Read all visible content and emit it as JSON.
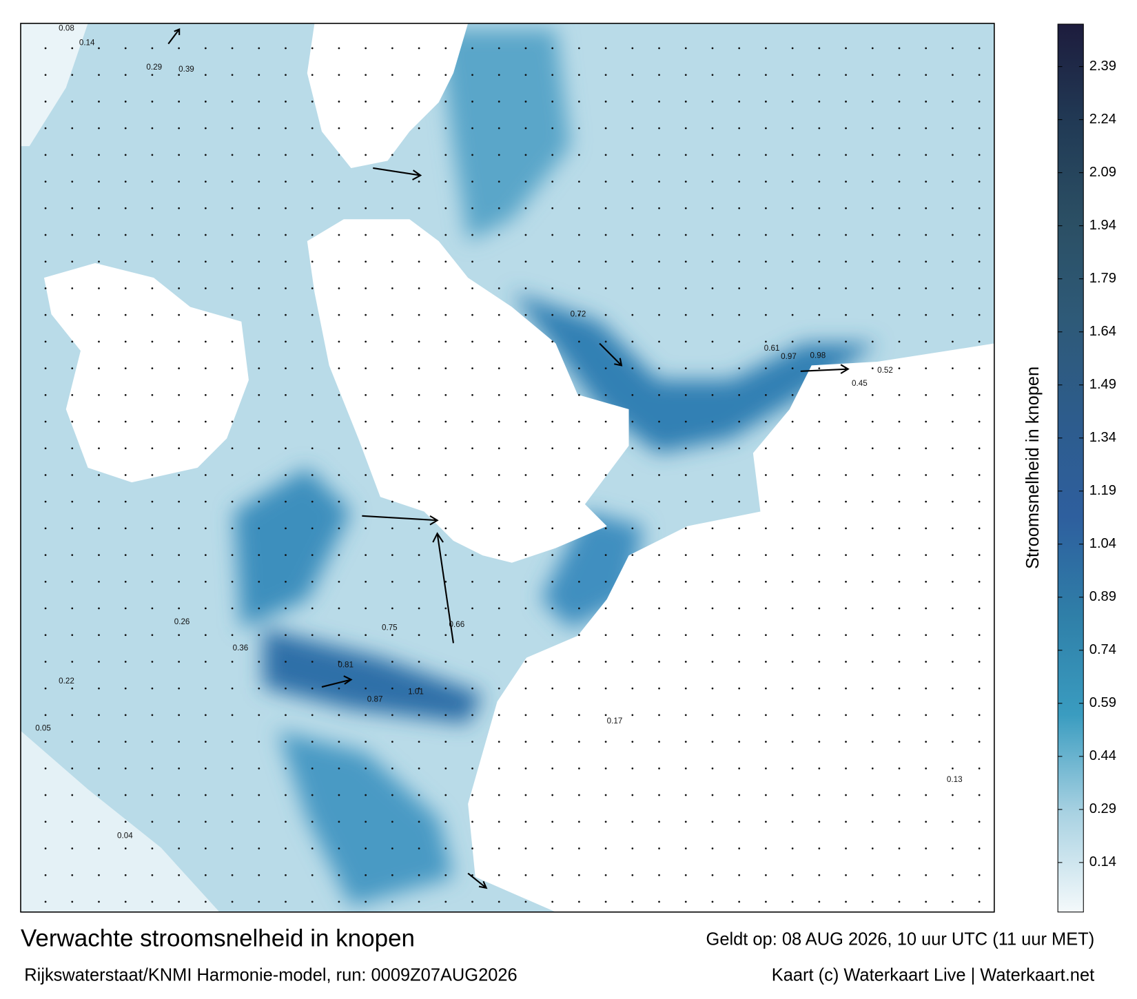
{
  "title": "Verwachte stroomsnelheid in knopen",
  "subtitle": "Rijkswaterstaat/KNMI Harmonie-model, run: 0009Z07AUG2026",
  "valid_time": "Geldt op: 08 AUG 2026, 10 uur UTC (11 uur MET)",
  "credit": "Kaart (c) Waterkaart Live | Waterkaart.net",
  "colorbar": {
    "label": "Stroomsnelheid in knopen",
    "lim": [
      0,
      2.51
    ],
    "ticks": [
      0.14,
      0.29,
      0.44,
      0.59,
      0.74,
      0.89,
      1.04,
      1.19,
      1.34,
      1.49,
      1.64,
      1.79,
      1.94,
      2.09,
      2.24,
      2.39
    ],
    "colors": [
      "#f4f9fb",
      "#a9d2e2",
      "#3a9cc0",
      "#2f7fa8",
      "#2e5f9e",
      "#2d5c8c",
      "#2e5a78",
      "#2b4f64",
      "#213a55",
      "#1d1c3d"
    ]
  },
  "current_labels": [
    "0.08",
    "0.14",
    "0.29",
    "0.39",
    "0.45",
    "0.52",
    "0.61",
    "0.72",
    "0.81",
    "0.97",
    "0.98",
    "1.01",
    "0.87",
    "0.75",
    "0.66",
    "0.36",
    "0.26",
    "0.22",
    "0.17",
    "0.13",
    "0.05",
    "0.04"
  ]
}
